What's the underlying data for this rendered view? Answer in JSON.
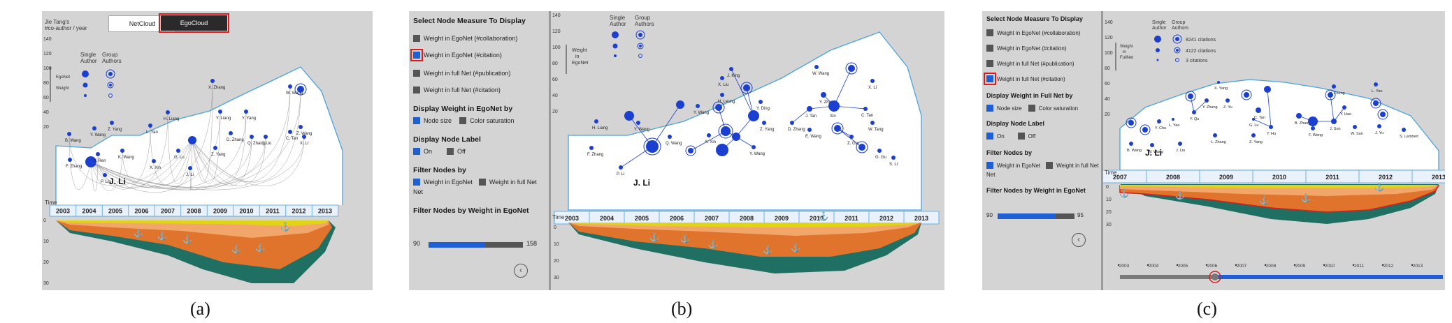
{
  "captions": {
    "a": "(a)",
    "b": "(b)",
    "c": "(c)"
  },
  "panel_a": {
    "toggle_netcloud": "NetCloud",
    "toggle_egocloud": "EgoCloud",
    "yaxis_title": "Jie Tang's\n#co-author / year",
    "legend_single": "Single\nAuthor",
    "legend_group": "Group\nAuthors",
    "legend_side_label": "EgoNet Weight",
    "years": [
      "2003",
      "2004",
      "2005",
      "2006",
      "2007",
      "2008",
      "2009",
      "2010",
      "2011",
      "2012",
      "2013"
    ],
    "time_label": "Time",
    "y_ticks_top": [
      "140",
      "120",
      "100",
      "80",
      "60",
      "40",
      "20"
    ],
    "y_ticks_bottom": [
      "0",
      "10",
      "20",
      "30"
    ],
    "ego_label": "J. Li"
  },
  "panel_b": {
    "section_measure": "Select Node Measure To Display",
    "measures": [
      "Weight in EgoNet (#collaboration)",
      "Weight in EgoNet (#citation)",
      "Weight in full Net (#publication)",
      "Weight in full Net (#citation)"
    ],
    "section_display_weight": "Display Weight in EgoNet by",
    "display_weight_opts": [
      "Node size",
      "Color saturation"
    ],
    "section_node_label": "Display Node Label",
    "node_label_opts": [
      "On",
      "Off"
    ],
    "section_filter": "Filter Nodes by",
    "filter_opts": [
      "Weight in EgoNet",
      "Weight in full Net"
    ],
    "section_filter_weight": "Filter Nodes by Weight in EgoNet",
    "slider_min": "90",
    "slider_max": "158",
    "slider_value": 0.6,
    "legend_single": "Single\nAuthor",
    "legend_group": "Group\nAuthors",
    "legend_side_label": "Weight in EgoNet",
    "years": [
      "2003",
      "2004",
      "2005",
      "2006",
      "2007",
      "2008",
      "2009",
      "2010",
      "2011",
      "2012",
      "2013"
    ],
    "time_label": "Time",
    "ego_label": "J. Li"
  },
  "panel_c": {
    "section_measure": "Select Node Measure To Display",
    "measures": [
      "Weight in EgoNet (#collaboration)",
      "Weight in EgoNet (#citation)",
      "Weight in full Net (#publication)",
      "Weight in full Net (#citation)"
    ],
    "section_display_weight": "Display Weight in Full Net by",
    "display_weight_opts": [
      "Node size",
      "Color saturation"
    ],
    "section_node_label": "Display Node Label",
    "node_label_opts": [
      "On",
      "Off"
    ],
    "section_filter": "Filter Nodes by",
    "filter_opts": [
      "Weight in EgoNet",
      "Weight in full Net"
    ],
    "section_filter_weight": "Filter Nodes by Weight in EgoNet",
    "slider_min": "90",
    "slider_max": "95",
    "slider_value": 0.75,
    "legend_single": "Single\nAuthor",
    "legend_group": "Group\nAuthors",
    "legend_side_label": "Weight in FullNet",
    "legend_values": [
      "8241 citations",
      "4122 citations",
      "3 citations"
    ],
    "years": [
      "2007",
      "2008",
      "2009",
      "2010",
      "2011",
      "2012",
      "2013"
    ],
    "timeline_years": [
      "2003",
      "2004",
      "2005",
      "2006",
      "2007",
      "2008",
      "2009",
      "2010",
      "2011",
      "2012",
      "2013"
    ],
    "ego_label": "J. Li"
  },
  "colors": {
    "node": "#1a3fd1",
    "sky": "#4aa3df",
    "highlight": "#d91c1c",
    "yellow": "#e0d419",
    "orange": "#e0742c",
    "teal": "#166f62"
  }
}
